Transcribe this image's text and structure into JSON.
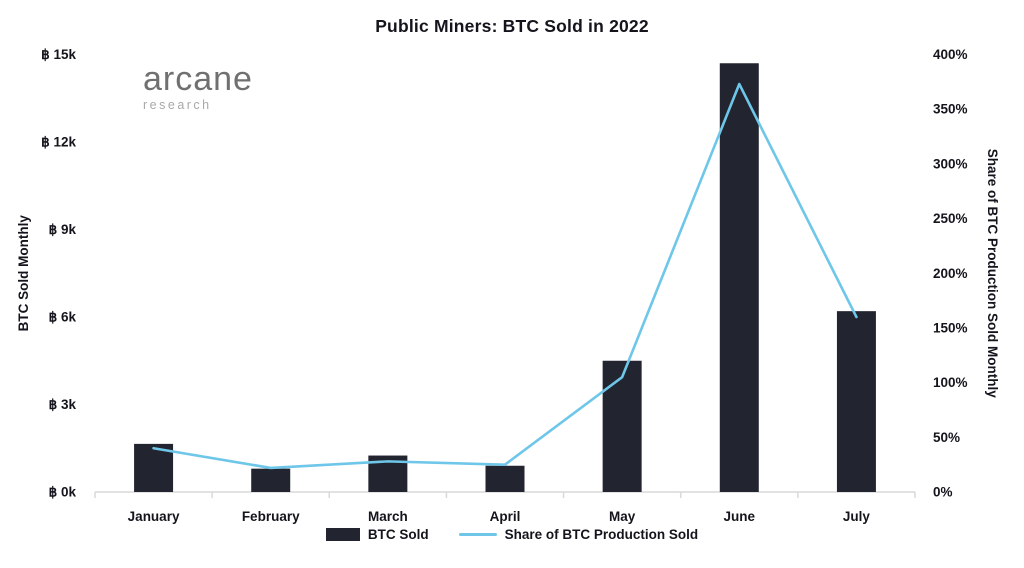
{
  "page": {
    "title": "Public Miners: BTC Sold in 2022"
  },
  "logo": {
    "name": "arcane",
    "sub": "research"
  },
  "colors": {
    "text": "#14141c",
    "axis_line": "#d9d9d9",
    "bar": "#22252f",
    "line": "#6ec6e9",
    "logo_main": "#707070",
    "logo_sub": "#a9a9a9"
  },
  "chart_data": {
    "type": "combo",
    "title": "Public Miners: BTC Sold in 2022",
    "categories": [
      "January",
      "February",
      "March",
      "April",
      "May",
      "June",
      "July"
    ],
    "series": [
      {
        "name": "BTC Sold",
        "type": "bar",
        "axis": "left",
        "color": "#22252f",
        "values": [
          1650,
          800,
          1250,
          900,
          4500,
          14700,
          6200
        ]
      },
      {
        "name": "Share of BTC Production Sold",
        "type": "line",
        "axis": "right",
        "color": "#6ec6e9",
        "values": [
          40,
          22,
          28,
          25,
          105,
          373,
          160
        ]
      }
    ],
    "left_axis": {
      "label": "BTC Sold Monthly",
      "range": [
        0,
        15000
      ],
      "tick_labels": [
        "฿ 15k",
        "฿ 12k",
        "฿ 9k",
        "฿ 6k",
        "฿ 3k",
        "฿ 0k"
      ],
      "tick_values": [
        15000,
        12000,
        9000,
        6000,
        3000,
        0
      ]
    },
    "right_axis": {
      "label": "Share of BTC Production Sold Monthly",
      "range": [
        0,
        400
      ],
      "tick_labels": [
        "400%",
        "350%",
        "300%",
        "250%",
        "200%",
        "150%",
        "100%",
        "50%",
        "0%"
      ],
      "tick_values": [
        400,
        350,
        300,
        250,
        200,
        150,
        100,
        50,
        0
      ]
    },
    "legend": {
      "position": "bottom",
      "entries": [
        "BTC Sold",
        "Share of BTC Production Sold"
      ]
    },
    "grid": false
  }
}
